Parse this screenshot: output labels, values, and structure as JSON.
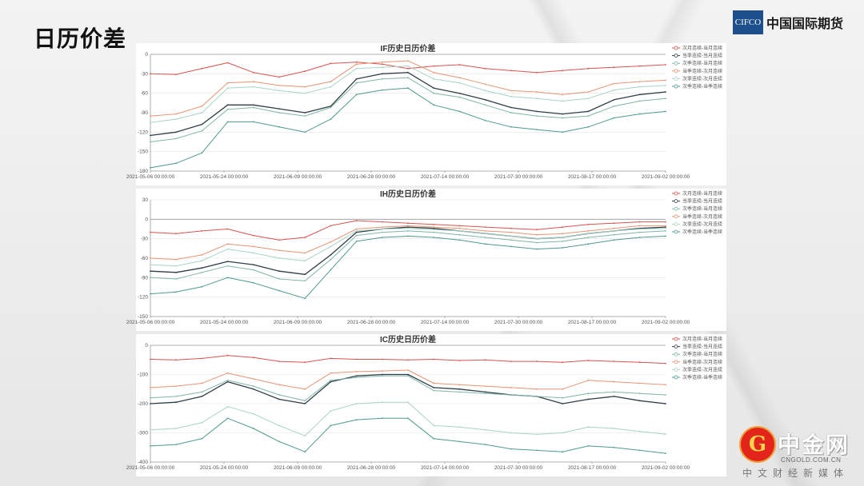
{
  "page": {
    "title": "日历价差"
  },
  "logo": {
    "badge": "CIFCO",
    "name": "中国国际期货"
  },
  "watermark": {
    "mark": "G",
    "name": "中金网",
    "url": "CNGOLD.COM.CN",
    "sub": "中文财经新媒体"
  },
  "colors": {
    "次月连续-当月连续": "#d9534f",
    "当季连续-当月连续": "#2f3e46",
    "次季连续-当月连续": "#7fb5a8",
    "当季连续-次月连续": "#e89474",
    "次季连续-次月连续": "#a8d3c5",
    "次季连续-当季连续": "#4e9a8e"
  },
  "chart_data": [
    {
      "type": "line",
      "title": "IF历史日历价差",
      "x_ticks": [
        "2021-05-06 00:00:00",
        "2021-05-24 00:00:00",
        "2021-06-09 00:00:00",
        "2021-06-28 00:00:00",
        "2021-07-14 00:00:00",
        "2021-07-30 00:00:00",
        "2021-08-17 00:00:00",
        "2021-09-02 00:00:00"
      ],
      "ylim": [
        -180,
        0
      ],
      "y_ticks": [
        0,
        -30,
        -60,
        -90,
        -120,
        -150,
        -180
      ],
      "legend_position": "top-right",
      "series": [
        {
          "name": "次月连续-当月连续",
          "values": [
            -30,
            -31,
            -22,
            -13,
            -28,
            -35,
            -26,
            -14,
            -12,
            -15,
            -22,
            -18,
            -16,
            -22,
            -25,
            -28,
            -25,
            -22,
            -20,
            -18,
            -16
          ]
        },
        {
          "name": "当季连续-当月连续",
          "values": [
            -125,
            -120,
            -108,
            -78,
            -78,
            -84,
            -90,
            -80,
            -38,
            -30,
            -28,
            -52,
            -60,
            -70,
            -82,
            -88,
            -92,
            -88,
            -70,
            -62,
            -58
          ]
        },
        {
          "name": "次季连续-当月连续",
          "values": [
            -135,
            -130,
            -118,
            -85,
            -82,
            -90,
            -95,
            -82,
            -44,
            -38,
            -36,
            -60,
            -66,
            -78,
            -90,
            -95,
            -98,
            -95,
            -80,
            -72,
            -68
          ]
        },
        {
          "name": "当季连续-次月连续",
          "values": [
            -95,
            -92,
            -80,
            -44,
            -42,
            -48,
            -50,
            -42,
            -15,
            -12,
            -10,
            -28,
            -36,
            -46,
            -56,
            -58,
            -62,
            -58,
            -45,
            -42,
            -40
          ]
        },
        {
          "name": "次季连续-次月连续",
          "values": [
            -105,
            -100,
            -90,
            -52,
            -50,
            -56,
            -60,
            -50,
            -22,
            -20,
            -18,
            -38,
            -44,
            -56,
            -65,
            -68,
            -72,
            -68,
            -55,
            -50,
            -48
          ]
        },
        {
          "name": "次季连续-当季连续",
          "values": [
            -175,
            -168,
            -152,
            -104,
            -104,
            -112,
            -120,
            -100,
            -62,
            -55,
            -52,
            -78,
            -88,
            -102,
            -112,
            -116,
            -120,
            -112,
            -98,
            -92,
            -88
          ]
        }
      ]
    },
    {
      "type": "line",
      "title": "IH历史日历价差",
      "x_ticks": [
        "2021-05-06 00:00:00",
        "2021-05-24 00:00:00",
        "2021-06-09 00:00:00",
        "2021-06-28 00:00:00",
        "2021-07-14 00:00:00",
        "2021-07-30 00:00:00",
        "2021-08-17 00:00:00",
        "2021-09-02 00:00:00"
      ],
      "ylim": [
        -150,
        30
      ],
      "y_ticks": [
        30,
        0,
        -30,
        -60,
        -90,
        -120,
        -150
      ],
      "legend_position": "top-right",
      "series": [
        {
          "name": "次月连续-当月连续",
          "values": [
            -20,
            -22,
            -18,
            -15,
            -25,
            -32,
            -28,
            -10,
            -2,
            -4,
            -6,
            -8,
            -10,
            -12,
            -14,
            -16,
            -12,
            -8,
            -6,
            -4,
            -4
          ]
        },
        {
          "name": "当季连续-当月连续",
          "values": [
            -80,
            -82,
            -75,
            -65,
            -70,
            -80,
            -85,
            -55,
            -20,
            -15,
            -12,
            -14,
            -18,
            -22,
            -26,
            -30,
            -28,
            -22,
            -18,
            -14,
            -12
          ]
        },
        {
          "name": "次季连续-当月连续",
          "values": [
            -90,
            -92,
            -82,
            -72,
            -78,
            -92,
            -95,
            -62,
            -25,
            -20,
            -18,
            -20,
            -24,
            -28,
            -32,
            -36,
            -34,
            -28,
            -24,
            -20,
            -18
          ]
        },
        {
          "name": "当季连续-次月连续",
          "values": [
            -60,
            -62,
            -55,
            -38,
            -42,
            -48,
            -52,
            -35,
            -15,
            -12,
            -10,
            -12,
            -14,
            -18,
            -20,
            -24,
            -22,
            -18,
            -14,
            -10,
            -10
          ]
        },
        {
          "name": "次季连续-次月连续",
          "values": [
            -70,
            -72,
            -64,
            -46,
            -52,
            -60,
            -64,
            -42,
            -18,
            -15,
            -14,
            -16,
            -18,
            -22,
            -26,
            -30,
            -28,
            -22,
            -18,
            -15,
            -14
          ]
        },
        {
          "name": "次季连续-当季连续",
          "values": [
            -115,
            -112,
            -104,
            -90,
            -98,
            -110,
            -122,
            -78,
            -34,
            -28,
            -26,
            -28,
            -32,
            -38,
            -42,
            -46,
            -44,
            -38,
            -32,
            -28,
            -26
          ]
        }
      ]
    },
    {
      "type": "line",
      "title": "IC历史日历价差",
      "x_ticks": [
        "2021-05-06 00:00:00",
        "2021-05-24 00:00:00",
        "2021-06-09 00:00:00",
        "2021-06-28 00:00:00",
        "2021-07-14 00:00:00",
        "2021-07-30 00:00:00",
        "2021-08-17 00:00:00",
        "2021-09-02 00:00:00"
      ],
      "ylim": [
        -400,
        0
      ],
      "y_ticks": [
        0,
        -100,
        -200,
        -300,
        -400
      ],
      "legend_position": "top-right",
      "series": [
        {
          "name": "次月连续-当月连续",
          "values": [
            -48,
            -50,
            -45,
            -35,
            -42,
            -55,
            -58,
            -45,
            -48,
            -48,
            -50,
            -48,
            -52,
            -50,
            -55,
            -55,
            -58,
            -52,
            -55,
            -58,
            -62
          ]
        },
        {
          "name": "当季连续-当月连续",
          "values": [
            -200,
            -195,
            -175,
            -125,
            -150,
            -185,
            -200,
            -125,
            -105,
            -100,
            -100,
            -145,
            -150,
            -160,
            -170,
            -175,
            -200,
            -185,
            -175,
            -190,
            -200
          ]
        },
        {
          "name": "次季连续-当月连续",
          "values": [
            -180,
            -175,
            -160,
            -120,
            -140,
            -170,
            -190,
            -120,
            -110,
            -105,
            -105,
            -155,
            -160,
            -165,
            -170,
            -175,
            -180,
            -165,
            -160,
            -165,
            -170
          ]
        },
        {
          "name": "当季连续-次月连续",
          "values": [
            -145,
            -140,
            -130,
            -95,
            -115,
            -135,
            -150,
            -95,
            -90,
            -88,
            -85,
            -130,
            -135,
            -140,
            -145,
            -150,
            -150,
            -120,
            -125,
            -130,
            -135
          ]
        },
        {
          "name": "次季连续-次月连续",
          "values": [
            -290,
            -285,
            -265,
            -210,
            -235,
            -275,
            -310,
            -225,
            -200,
            -195,
            -195,
            -275,
            -280,
            -290,
            -300,
            -305,
            -300,
            -280,
            -285,
            -295,
            -305
          ]
        },
        {
          "name": "次季连续-当季连续",
          "values": [
            -345,
            -340,
            -320,
            -250,
            -285,
            -330,
            -365,
            -275,
            -255,
            -250,
            -250,
            -320,
            -330,
            -340,
            -355,
            -360,
            -365,
            -345,
            -350,
            -360,
            -370
          ]
        }
      ]
    }
  ]
}
